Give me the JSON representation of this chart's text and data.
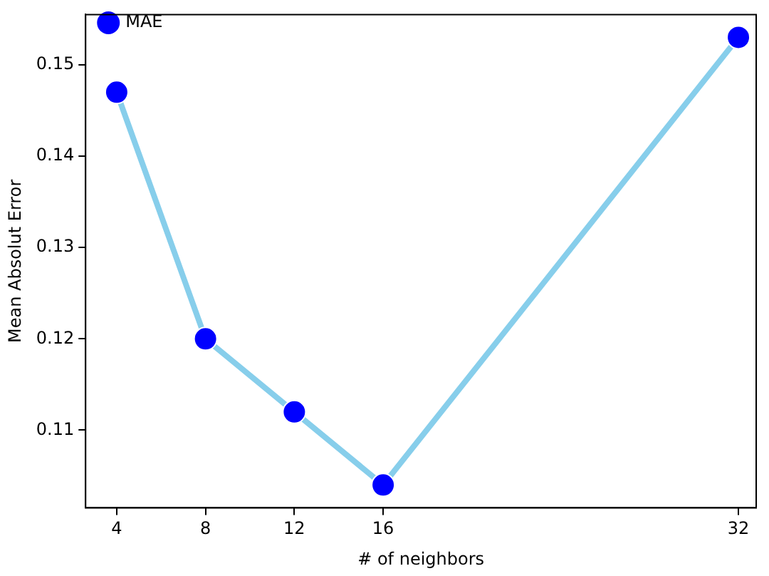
{
  "chart_data": {
    "type": "line",
    "xlabel": "# of neighbors",
    "ylabel": "Mean Absolut Error",
    "x": [
      4,
      8,
      12,
      16,
      32
    ],
    "series": [
      {
        "name": "MAE",
        "color": "#87ceeb",
        "colors": [
          "#0000ff",
          "#0000ff",
          "#0000ff",
          "#0000ff",
          "#0000ff"
        ],
        "values": [
          0.147,
          0.12,
          0.112,
          0.104,
          0.153
        ]
      }
    ],
    "xlim": [
      2.6,
      32.8
    ],
    "xticks": [
      4,
      8,
      12,
      16,
      32
    ],
    "ylim": [
      0.1015,
      0.1555
    ],
    "yticks": [
      0.11,
      0.12,
      0.13,
      0.14,
      0.15
    ],
    "grid": false,
    "legend": "top left",
    "marker": "circle",
    "line_style": "solid"
  }
}
